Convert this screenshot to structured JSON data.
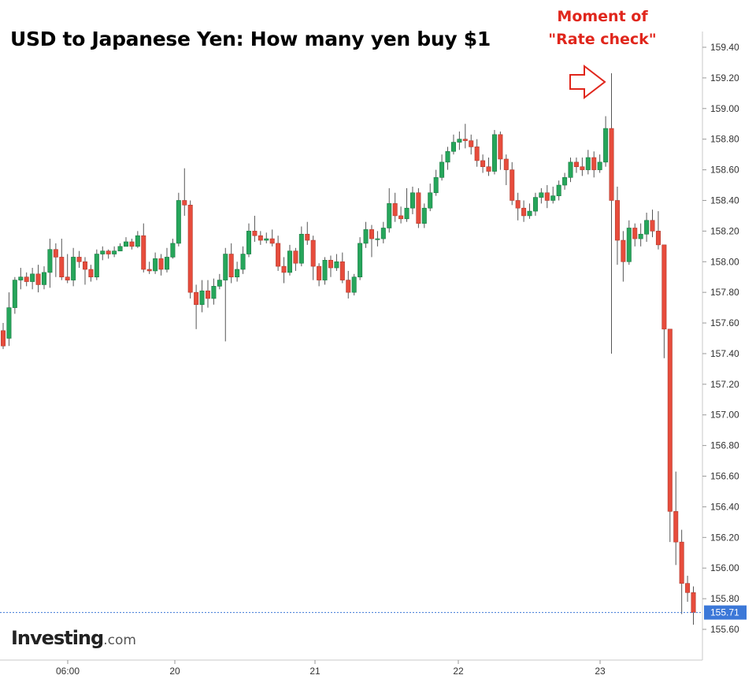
{
  "chart_data": {
    "type": "candlestick",
    "title": "USD to Japanese Yen: How many yen buy $1",
    "annotation": [
      "Moment of",
      "\"Rate check\""
    ],
    "watermark": {
      "brand": "Investing",
      "suffix": ".com"
    },
    "x_ticks": [
      "06:00",
      "20",
      "21",
      "22",
      "23"
    ],
    "y_ticks": [
      "159.40",
      "159.20",
      "159.00",
      "158.80",
      "158.60",
      "158.40",
      "158.20",
      "158.00",
      "157.80",
      "157.60",
      "157.40",
      "157.20",
      "157.00",
      "156.80",
      "156.60",
      "156.40",
      "156.20",
      "156.00",
      "155.80",
      "155.60"
    ],
    "ylim": [
      155.47,
      159.53
    ],
    "current_price": "155.71",
    "colors": {
      "up": "#26a65b",
      "down": "#e74c3c",
      "price_tag": "#3c78d8",
      "annotation": "#e0261c",
      "axis": "#c8c8c8"
    },
    "candles": [
      [
        157.55,
        157.45,
        157.6,
        157.43
      ],
      [
        157.5,
        157.7,
        157.8,
        157.45
      ],
      [
        157.7,
        157.88,
        157.9,
        157.66
      ],
      [
        157.88,
        157.9,
        157.96,
        157.82
      ],
      [
        157.9,
        157.87,
        157.93,
        157.84
      ],
      [
        157.87,
        157.92,
        157.96,
        157.82
      ],
      [
        157.92,
        157.85,
        157.98,
        157.8
      ],
      [
        157.85,
        157.93,
        157.97,
        157.82
      ],
      [
        157.93,
        158.08,
        158.15,
        157.83
      ],
      [
        158.08,
        158.03,
        158.12,
        157.9
      ],
      [
        158.03,
        157.9,
        158.15,
        157.88
      ],
      [
        157.9,
        157.88,
        158.05,
        157.86
      ],
      [
        157.88,
        158.03,
        158.09,
        157.84
      ],
      [
        158.03,
        158.0,
        158.07,
        157.96
      ],
      [
        158.0,
        157.95,
        158.03,
        157.85
      ],
      [
        157.95,
        157.9,
        157.98,
        157.87
      ],
      [
        157.9,
        158.05,
        158.08,
        157.88
      ],
      [
        158.05,
        158.07,
        158.1,
        158.01
      ],
      [
        158.07,
        158.05,
        158.08,
        158.02
      ],
      [
        158.05,
        158.07,
        158.1,
        158.03
      ],
      [
        158.07,
        158.1,
        158.12,
        158.07
      ],
      [
        158.1,
        158.13,
        158.16,
        158.1
      ],
      [
        158.13,
        158.1,
        158.15,
        158.08
      ],
      [
        158.1,
        158.17,
        158.2,
        158.09
      ],
      [
        158.17,
        157.95,
        158.25,
        157.93
      ],
      [
        157.95,
        157.94,
        158.0,
        157.92
      ],
      [
        157.94,
        158.02,
        158.06,
        157.92
      ],
      [
        158.02,
        157.95,
        158.05,
        157.91
      ],
      [
        157.95,
        158.03,
        158.09,
        157.93
      ],
      [
        158.03,
        158.12,
        158.15,
        158.02
      ],
      [
        158.12,
        158.4,
        158.45,
        158.1
      ],
      [
        158.4,
        158.37,
        158.61,
        158.3
      ],
      [
        158.37,
        157.8,
        158.4,
        157.76
      ],
      [
        157.8,
        157.72,
        157.85,
        157.56
      ],
      [
        157.72,
        157.81,
        157.88,
        157.67
      ],
      [
        157.81,
        157.76,
        157.88,
        157.7
      ],
      [
        157.76,
        157.84,
        157.89,
        157.72
      ],
      [
        157.84,
        157.88,
        157.92,
        157.82
      ],
      [
        157.88,
        158.05,
        158.09,
        157.48
      ],
      [
        158.05,
        157.9,
        158.12,
        157.86
      ],
      [
        157.9,
        157.95,
        158.0,
        157.87
      ],
      [
        157.95,
        158.05,
        158.1,
        157.92
      ],
      [
        158.05,
        158.2,
        158.25,
        158.03
      ],
      [
        158.2,
        158.17,
        158.3,
        158.13
      ],
      [
        158.17,
        158.14,
        158.2,
        158.11
      ],
      [
        158.14,
        158.15,
        158.19,
        158.12
      ],
      [
        158.15,
        158.12,
        158.21,
        158.1
      ],
      [
        158.12,
        157.97,
        158.17,
        157.94
      ],
      [
        157.97,
        157.93,
        158.03,
        157.86
      ],
      [
        157.93,
        158.07,
        158.11,
        157.91
      ],
      [
        158.07,
        157.99,
        158.09,
        157.94
      ],
      [
        157.99,
        158.18,
        158.23,
        157.97
      ],
      [
        158.18,
        158.14,
        158.26,
        158.11
      ],
      [
        158.14,
        157.97,
        158.17,
        157.88
      ],
      [
        157.97,
        157.88,
        157.99,
        157.84
      ],
      [
        157.88,
        158.01,
        158.03,
        157.85
      ],
      [
        158.01,
        157.96,
        158.04,
        157.9
      ],
      [
        157.96,
        158.0,
        158.05,
        157.94
      ],
      [
        158.0,
        157.88,
        158.06,
        157.86
      ],
      [
        157.88,
        157.8,
        157.94,
        157.76
      ],
      [
        157.8,
        157.9,
        157.92,
        157.78
      ],
      [
        157.9,
        158.12,
        158.16,
        157.88
      ],
      [
        158.12,
        158.21,
        158.26,
        158.09
      ],
      [
        158.21,
        158.15,
        158.24,
        158.03
      ],
      [
        158.15,
        158.15,
        158.2,
        158.1
      ],
      [
        158.15,
        158.22,
        158.26,
        158.12
      ],
      [
        158.22,
        158.38,
        158.48,
        158.19
      ],
      [
        158.38,
        158.3,
        158.45,
        158.26
      ],
      [
        158.3,
        158.28,
        158.36,
        158.25
      ],
      [
        158.28,
        158.35,
        158.48,
        158.26
      ],
      [
        158.35,
        158.45,
        158.49,
        158.31
      ],
      [
        158.45,
        158.25,
        158.48,
        158.22
      ],
      [
        158.25,
        158.35,
        158.38,
        158.22
      ],
      [
        158.35,
        158.45,
        158.51,
        158.33
      ],
      [
        158.45,
        158.55,
        158.6,
        158.43
      ],
      [
        158.55,
        158.65,
        158.7,
        158.53
      ],
      [
        158.65,
        158.72,
        158.75,
        158.6
      ],
      [
        158.72,
        158.78,
        158.83,
        158.7
      ],
      [
        158.78,
        158.8,
        158.85,
        158.73
      ],
      [
        158.8,
        158.79,
        158.9,
        158.74
      ],
      [
        158.79,
        158.75,
        158.83,
        158.7
      ],
      [
        158.75,
        158.66,
        158.8,
        158.62
      ],
      [
        158.66,
        158.62,
        158.7,
        158.58
      ],
      [
        158.62,
        158.59,
        158.68,
        158.56
      ],
      [
        158.59,
        158.83,
        158.86,
        158.57
      ],
      [
        158.83,
        158.67,
        158.85,
        158.6
      ],
      [
        158.67,
        158.6,
        158.7,
        158.5
      ],
      [
        158.6,
        158.4,
        158.65,
        158.37
      ],
      [
        158.4,
        158.35,
        158.45,
        158.27
      ],
      [
        158.35,
        158.3,
        158.4,
        158.26
      ],
      [
        158.3,
        158.33,
        158.38,
        158.28
      ],
      [
        158.33,
        158.42,
        158.45,
        158.3
      ],
      [
        158.42,
        158.45,
        158.48,
        158.38
      ],
      [
        158.45,
        158.4,
        158.5,
        158.35
      ],
      [
        158.4,
        158.43,
        158.49,
        158.38
      ],
      [
        158.43,
        158.5,
        158.53,
        158.4
      ],
      [
        158.5,
        158.55,
        158.58,
        158.47
      ],
      [
        158.55,
        158.65,
        158.68,
        158.52
      ],
      [
        158.65,
        158.62,
        158.68,
        158.58
      ],
      [
        158.62,
        158.6,
        158.68,
        158.56
      ],
      [
        158.6,
        158.68,
        158.73,
        158.57
      ],
      [
        158.68,
        158.6,
        158.72,
        158.55
      ],
      [
        158.6,
        158.65,
        158.7,
        158.58
      ],
      [
        158.65,
        158.87,
        158.95,
        158.62
      ],
      [
        158.87,
        158.4,
        159.23,
        157.4
      ],
      [
        158.4,
        158.14,
        158.49,
        157.98
      ],
      [
        158.14,
        158.0,
        158.2,
        157.87
      ],
      [
        158.0,
        158.22,
        158.27,
        157.98
      ],
      [
        158.22,
        158.15,
        158.25,
        158.1
      ],
      [
        158.15,
        158.18,
        158.25,
        158.1
      ],
      [
        158.18,
        158.27,
        158.32,
        158.13
      ],
      [
        158.27,
        158.2,
        158.34,
        158.16
      ],
      [
        158.2,
        158.11,
        158.33,
        158.08
      ],
      [
        158.11,
        157.56,
        158.11,
        157.37
      ],
      [
        157.56,
        156.37,
        157.56,
        156.17
      ],
      [
        156.37,
        156.17,
        156.63,
        156.02
      ],
      [
        156.17,
        155.9,
        156.25,
        155.7
      ],
      [
        155.9,
        155.84,
        155.95,
        155.78
      ],
      [
        155.84,
        155.71,
        155.88,
        155.63
      ]
    ]
  }
}
